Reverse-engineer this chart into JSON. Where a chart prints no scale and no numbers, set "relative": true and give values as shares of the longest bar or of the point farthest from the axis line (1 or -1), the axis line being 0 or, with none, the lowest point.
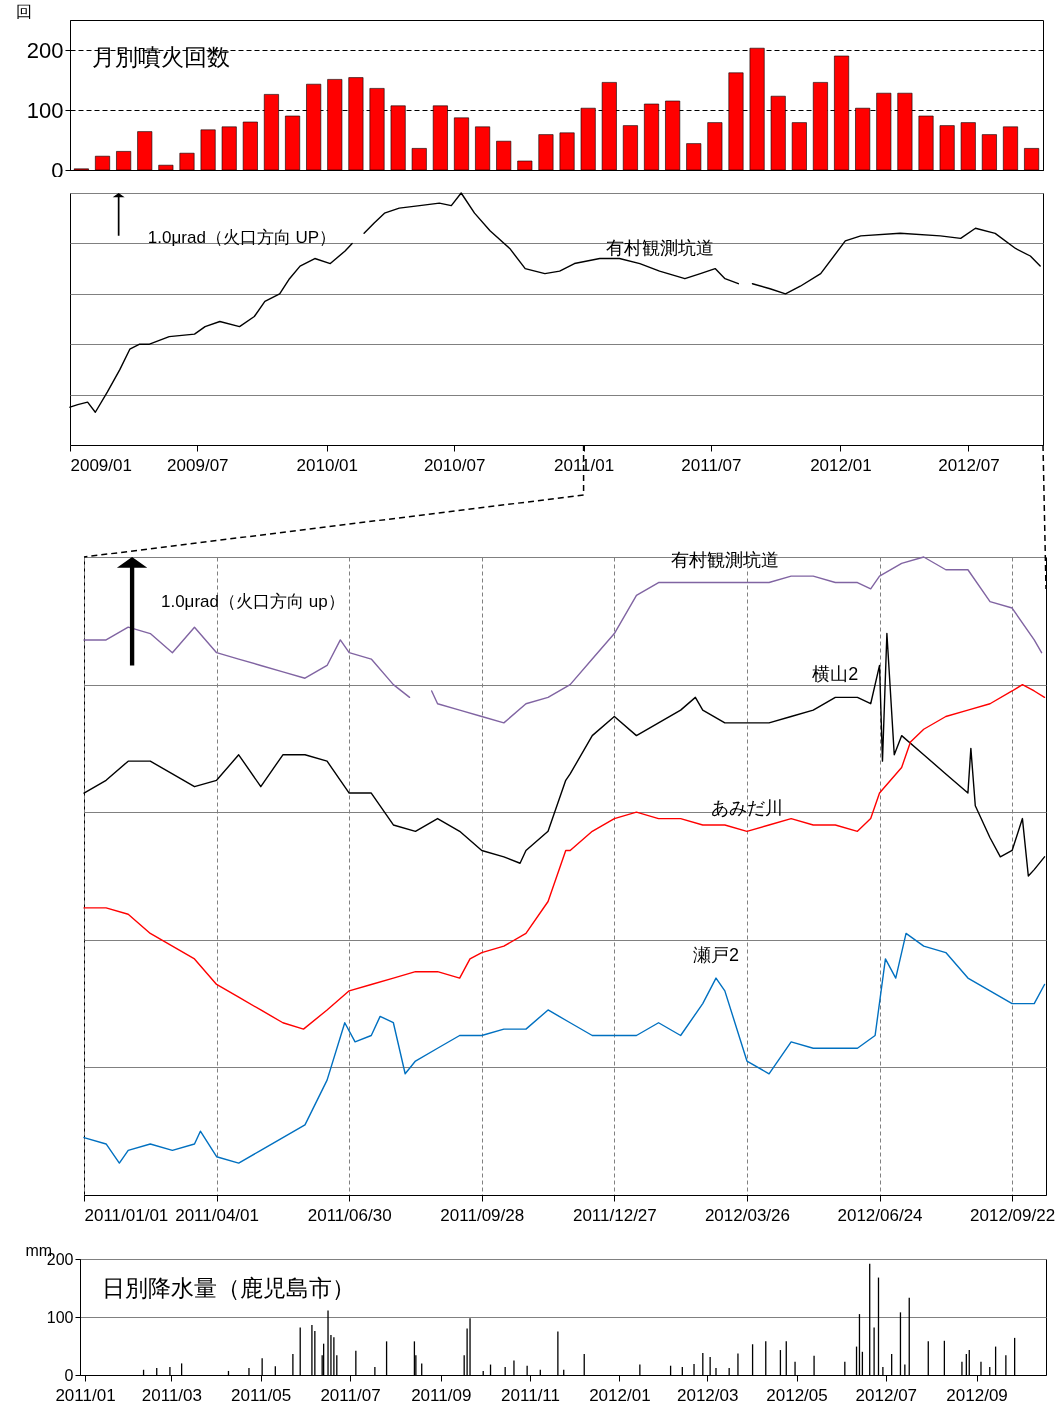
{
  "chart_data": [
    {
      "type": "bar",
      "title": "月別噴火回数",
      "ylabel": "回",
      "categories": [
        null,
        null,
        null,
        null,
        null,
        null,
        null,
        null,
        null,
        null,
        null,
        null,
        null,
        null,
        null,
        null,
        null,
        null,
        null,
        null,
        null,
        null,
        null,
        null,
        null,
        null,
        null,
        null,
        null,
        null,
        null,
        null,
        null,
        null,
        null,
        null,
        null,
        null,
        null,
        null,
        null,
        null,
        null,
        null,
        null,
        null
      ],
      "values": [
        2,
        23,
        31,
        64,
        8,
        28,
        67,
        72,
        80,
        126,
        90,
        143,
        151,
        154,
        136,
        107,
        36,
        107,
        87,
        72,
        48,
        15,
        59,
        62,
        103,
        146,
        74,
        110,
        115,
        44,
        79,
        162,
        203,
        123,
        79,
        146,
        190,
        103,
        128,
        128,
        90,
        74,
        79,
        59,
        72,
        36
      ],
      "color": "#ff0000",
      "ylim": [
        0,
        250
      ],
      "yticks": [
        0,
        100,
        200
      ],
      "grid": "y",
      "tick_labels": "y"
    },
    {
      "type": "line",
      "relative": true,
      "annotations": [
        "1.0μrad（火口方向 UP）"
      ],
      "xlim": [
        "2009-01-01",
        "2012-10-15"
      ],
      "xticks": [
        {
          "value": "2009-01-01",
          "label": "2009/01"
        },
        {
          "value": "2009-07-01",
          "label": "2009/07"
        },
        {
          "value": "2010-01-01",
          "label": "2010/01"
        },
        {
          "value": "2010-07-01",
          "label": "2010/07"
        },
        {
          "value": "2011-01-01",
          "label": "2011/01"
        },
        {
          "value": "2011-07-01",
          "label": "2011/07"
        },
        {
          "value": "2012-01-01",
          "label": "2012/01"
        },
        {
          "value": "2012-07-01",
          "label": "2012/07"
        }
      ],
      "grid": "y",
      "series": [
        {
          "name": "有村観測坑道",
          "color": "#000000",
          "x": [
            "2009-01-01",
            "2009-01-12",
            "2009-01-26",
            "2009-02-06",
            "2009-02-23",
            "2009-03-13",
            "2009-03-27",
            "2009-04-10",
            "2009-04-24",
            "2009-05-22",
            "2009-06-27",
            "2009-07-12",
            "2009-08-02",
            "2009-08-30",
            "2009-09-20",
            "2009-10-05",
            "2009-10-26",
            "2009-11-09",
            "2009-11-24",
            "2009-12-15",
            "2010-01-06",
            "2010-01-27",
            "2010-02-06",
            "2010-02-14",
            "2010-02-23",
            "2010-03-09",
            "2010-03-24",
            "2010-04-14",
            "2010-05-13",
            "2010-06-10",
            "2010-06-27",
            "2010-07-11",
            "2010-07-30",
            "2010-08-21",
            "2010-09-18",
            "2010-10-10",
            "2010-11-07",
            "2010-11-28",
            "2010-12-19",
            "2011-01-24",
            "2011-02-21",
            "2011-03-22",
            "2011-04-19",
            "2011-05-25",
            "2011-06-16",
            "2011-07-07",
            "2011-07-21",
            "2011-08-09",
            "2011-08-19",
            "2011-08-29",
            "2011-09-23",
            "2011-10-15",
            "2011-11-05",
            "2011-12-04",
            "2012-01-08",
            "2012-01-30",
            "2012-03-26",
            "2012-05-22",
            "2012-06-20",
            "2012-07-11",
            "2012-08-08",
            "2012-09-06",
            "2012-09-27",
            "2012-10-11"
          ],
          "values": [
            0.15,
            0.16,
            0.17,
            0.13,
            0.21,
            0.3,
            0.38,
            0.4,
            0.4,
            0.43,
            0.44,
            0.47,
            0.49,
            0.47,
            0.51,
            0.57,
            0.6,
            0.66,
            0.71,
            0.74,
            0.72,
            0.77,
            0.8,
            null,
            0.84,
            0.88,
            0.92,
            0.94,
            0.95,
            0.96,
            0.95,
            1,
            0.92,
            0.85,
            0.78,
            0.7,
            0.68,
            0.69,
            0.72,
            0.74,
            0.74,
            0.72,
            0.69,
            0.66,
            0.68,
            0.7,
            0.66,
            0.64,
            null,
            0.64,
            0.62,
            0.6,
            0.63,
            0.68,
            0.81,
            0.83,
            0.84,
            0.83,
            0.82,
            0.86,
            0.84,
            0.78,
            0.75,
            0.71
          ]
        }
      ]
    },
    {
      "type": "line",
      "relative": true,
      "annotations": [
        "1.0μrad（火口方向 up）"
      ],
      "xlim": [
        "2011-01-01",
        "2012-10-15"
      ],
      "xticks": [
        {
          "value": "2011-01-01",
          "label": "2011/01/01"
        },
        {
          "value": "2011-04-01",
          "label": "2011/04/01"
        },
        {
          "value": "2011-06-30",
          "label": "2011/06/30"
        },
        {
          "value": "2011-09-28",
          "label": "2011/09/28"
        },
        {
          "value": "2011-12-27",
          "label": "2011/12/27"
        },
        {
          "value": "2012-03-26",
          "label": "2012/03/26"
        },
        {
          "value": "2012-06-24",
          "label": "2012/06/24"
        },
        {
          "value": "2012-09-22",
          "label": "2012/09/22"
        }
      ],
      "grid": true,
      "series": [
        {
          "name": "有村観測坑道",
          "color": "#8064a2",
          "x": [
            "2011-01-01",
            "2011-01-16",
            "2011-01-31",
            "2011-02-15",
            "2011-03-02",
            "2011-03-17",
            "2011-04-01",
            "2011-04-16",
            "2011-05-01",
            "2011-05-16",
            "2011-05-31",
            "2011-06-15",
            "2011-06-24",
            "2011-06-30",
            "2011-07-15",
            "2011-07-30",
            "2011-08-10",
            "2011-08-17",
            "2011-08-25",
            "2011-08-29",
            "2011-09-13",
            "2011-09-28",
            "2011-10-13",
            "2011-10-28",
            "2011-11-12",
            "2011-11-27",
            "2011-12-12",
            "2011-12-27",
            "2012-01-11",
            "2012-01-26",
            "2012-02-10",
            "2012-02-25",
            "2012-03-11",
            "2012-03-26",
            "2012-04-10",
            "2012-04-25",
            "2012-05-10",
            "2012-05-25",
            "2012-06-09",
            "2012-06-18",
            "2012-06-24",
            "2012-07-09",
            "2012-07-24",
            "2012-08-08",
            "2012-08-23",
            "2012-09-07",
            "2012-09-22",
            "2012-10-07",
            "2012-10-12"
          ],
          "values": [
            0.87,
            0.87,
            0.89,
            0.88,
            0.85,
            0.89,
            0.85,
            0.84,
            0.83,
            0.82,
            0.81,
            0.83,
            0.87,
            0.85,
            0.84,
            0.8,
            0.78,
            null,
            0.79,
            0.77,
            0.76,
            0.75,
            0.74,
            0.77,
            0.78,
            0.8,
            0.84,
            0.88,
            0.94,
            0.96,
            0.96,
            0.96,
            0.96,
            0.96,
            0.96,
            0.97,
            0.97,
            0.96,
            0.96,
            0.95,
            0.97,
            0.99,
            1,
            0.98,
            0.98,
            0.93,
            0.92,
            0.87,
            0.85
          ]
        },
        {
          "name": "横山2",
          "color": "#000000",
          "x": [
            "2011-01-01",
            "2011-01-16",
            "2011-01-31",
            "2011-02-15",
            "2011-03-02",
            "2011-03-17",
            "2011-04-01",
            "2011-04-16",
            "2011-05-01",
            "2011-05-16",
            "2011-05-31",
            "2011-06-15",
            "2011-06-30",
            "2011-07-15",
            "2011-07-30",
            "2011-08-14",
            "2011-08-29",
            "2011-09-13",
            "2011-09-28",
            "2011-10-13",
            "2011-10-24",
            "2011-10-28",
            "2011-11-12",
            "2011-11-24",
            "2011-11-27",
            "2011-12-12",
            "2011-12-27",
            "2012-01-11",
            "2012-01-26",
            "2012-02-10",
            "2012-02-20",
            "2012-02-25",
            "2012-03-11",
            "2012-03-26",
            "2012-04-10",
            "2012-04-25",
            "2012-05-10",
            "2012-05-25",
            "2012-06-09",
            "2012-06-18",
            "2012-06-24",
            "2012-06-26",
            "2012-06-29",
            "2012-07-04",
            "2012-07-09",
            "2012-07-24",
            "2012-08-08",
            "2012-08-23",
            "2012-08-25",
            "2012-08-28",
            "2012-09-07",
            "2012-09-14",
            "2012-09-22",
            "2012-09-29",
            "2012-10-03",
            "2012-10-07",
            "2012-10-14"
          ],
          "values": [
            0.63,
            0.65,
            0.68,
            0.68,
            0.66,
            0.64,
            0.65,
            0.69,
            0.64,
            0.69,
            0.69,
            0.68,
            0.63,
            0.63,
            0.58,
            0.57,
            0.59,
            0.57,
            0.54,
            0.53,
            0.52,
            0.54,
            0.57,
            0.65,
            0.66,
            0.72,
            0.75,
            0.72,
            0.74,
            0.76,
            0.78,
            0.76,
            0.74,
            0.74,
            0.74,
            0.75,
            0.76,
            0.78,
            0.78,
            0.77,
            0.83,
            0.68,
            0.88,
            0.69,
            0.72,
            0.69,
            0.66,
            0.63,
            0.7,
            0.61,
            0.56,
            0.53,
            0.54,
            0.59,
            0.5,
            0.51,
            0.53
          ]
        },
        {
          "name": "あみだ川",
          "color": "#ff0000",
          "x": [
            "2011-01-01",
            "2011-01-16",
            "2011-01-31",
            "2011-02-15",
            "2011-03-02",
            "2011-03-17",
            "2011-04-01",
            "2011-04-16",
            "2011-05-01",
            "2011-05-16",
            "2011-05-30",
            "2011-06-15",
            "2011-06-30",
            "2011-07-15",
            "2011-07-30",
            "2011-08-14",
            "2011-08-29",
            "2011-09-13",
            "2011-09-20",
            "2011-09-28",
            "2011-10-13",
            "2011-10-28",
            "2011-11-12",
            "2011-11-24",
            "2011-11-27",
            "2011-12-12",
            "2011-12-27",
            "2012-01-11",
            "2012-01-26",
            "2012-02-10",
            "2012-02-25",
            "2012-03-11",
            "2012-03-26",
            "2012-04-10",
            "2012-04-25",
            "2012-05-10",
            "2012-05-25",
            "2012-06-09",
            "2012-06-18",
            "2012-06-24",
            "2012-07-09",
            "2012-07-15",
            "2012-07-24",
            "2012-08-08",
            "2012-08-23",
            "2012-09-07",
            "2012-09-22",
            "2012-09-29",
            "2012-10-07",
            "2012-10-14"
          ],
          "values": [
            0.45,
            0.45,
            0.44,
            0.41,
            0.39,
            0.37,
            0.33,
            0.31,
            0.29,
            0.27,
            0.26,
            0.29,
            0.32,
            0.33,
            0.34,
            0.35,
            0.35,
            0.34,
            0.37,
            0.38,
            0.39,
            0.41,
            0.46,
            0.54,
            0.54,
            0.57,
            0.59,
            0.6,
            0.59,
            0.59,
            0.58,
            0.58,
            0.57,
            0.58,
            0.59,
            0.58,
            0.58,
            0.57,
            0.59,
            0.63,
            0.67,
            0.71,
            0.73,
            0.75,
            0.76,
            0.77,
            0.79,
            0.8,
            0.79,
            0.78
          ]
        },
        {
          "name": "瀬戸2",
          "color": "#0070c0",
          "x": [
            "2011-01-01",
            "2011-01-16",
            "2011-01-25",
            "2011-01-31",
            "2011-02-15",
            "2011-03-02",
            "2011-03-17",
            "2011-03-21",
            "2011-04-01",
            "2011-04-16",
            "2011-05-01",
            "2011-05-16",
            "2011-05-31",
            "2011-06-15",
            "2011-06-27",
            "2011-07-04",
            "2011-07-15",
            "2011-07-21",
            "2011-07-30",
            "2011-08-07",
            "2011-08-14",
            "2011-08-29",
            "2011-09-13",
            "2011-09-28",
            "2011-10-13",
            "2011-10-28",
            "2011-11-12",
            "2011-11-27",
            "2011-12-12",
            "2011-12-27",
            "2012-01-11",
            "2012-01-26",
            "2012-02-10",
            "2012-02-25",
            "2012-03-05",
            "2012-03-11",
            "2012-03-26",
            "2012-04-10",
            "2012-04-25",
            "2012-05-10",
            "2012-05-25",
            "2012-06-09",
            "2012-06-21",
            "2012-06-28",
            "2012-07-05",
            "2012-07-12",
            "2012-07-24",
            "2012-08-08",
            "2012-08-23",
            "2012-09-07",
            "2012-09-22",
            "2012-10-07",
            "2012-10-14"
          ],
          "values": [
            0.09,
            0.08,
            0.05,
            0.07,
            0.08,
            0.07,
            0.08,
            0.1,
            0.06,
            0.05,
            0.07,
            0.09,
            0.11,
            0.18,
            0.27,
            0.24,
            0.25,
            0.28,
            0.27,
            0.19,
            0.21,
            0.23,
            0.25,
            0.25,
            0.26,
            0.26,
            0.29,
            0.27,
            0.25,
            0.25,
            0.25,
            0.27,
            0.25,
            0.3,
            0.34,
            0.32,
            0.21,
            0.19,
            0.24,
            0.23,
            0.23,
            0.23,
            0.25,
            0.37,
            0.34,
            0.41,
            0.39,
            0.38,
            0.34,
            0.32,
            0.3,
            0.3,
            0.33
          ]
        }
      ]
    },
    {
      "type": "bar",
      "title": "日別降水量（鹿児島市）",
      "ylabel": "mm",
      "x": [
        "2011-02-10",
        "2011-02-19",
        "2011-02-28",
        "2011-03-08",
        "2011-04-09",
        "2011-04-23",
        "2011-05-02",
        "2011-05-11",
        "2011-05-23",
        "2011-05-28",
        "2011-06-05",
        "2011-06-07",
        "2011-06-12",
        "2011-06-13",
        "2011-06-16",
        "2011-06-18",
        "2011-06-20",
        "2011-06-22",
        "2011-07-05",
        "2011-07-18",
        "2011-07-26",
        "2011-08-14",
        "2011-08-15",
        "2011-08-19",
        "2011-09-17",
        "2011-09-19",
        "2011-09-21",
        "2011-09-30",
        "2011-10-05",
        "2011-10-15",
        "2011-10-21",
        "2011-10-30",
        "2011-11-08",
        "2011-11-20",
        "2011-11-24",
        "2011-12-08",
        "2012-01-15",
        "2012-02-05",
        "2012-02-13",
        "2012-02-21",
        "2012-02-27",
        "2012-03-03",
        "2012-03-07",
        "2012-03-16",
        "2012-03-22",
        "2012-04-01",
        "2012-04-10",
        "2012-04-20",
        "2012-04-24",
        "2012-04-30",
        "2012-05-13",
        "2012-06-03",
        "2012-06-11",
        "2012-06-13",
        "2012-06-15",
        "2012-06-20",
        "2012-06-23",
        "2012-06-26",
        "2012-06-29",
        "2012-07-05",
        "2012-07-11",
        "2012-07-14",
        "2012-07-17",
        "2012-07-30",
        "2012-08-10",
        "2012-08-22",
        "2012-08-25",
        "2012-08-27",
        "2012-09-04",
        "2012-09-10",
        "2012-09-14",
        "2012-09-21",
        "2012-09-27"
      ],
      "values": [
        9,
        12,
        14,
        20,
        7,
        12,
        29,
        15,
        36,
        82,
        86,
        76,
        34,
        54,
        111,
        69,
        65,
        34,
        42,
        14,
        58,
        58,
        34,
        20,
        34,
        80,
        98,
        7,
        18,
        14,
        25,
        16,
        9,
        75,
        9,
        36,
        18,
        16,
        14,
        19,
        38,
        31,
        12,
        12,
        37,
        53,
        58,
        43,
        58,
        23,
        33,
        23,
        49,
        105,
        40,
        192,
        82,
        168,
        14,
        36,
        108,
        18,
        133,
        58,
        59,
        23,
        36,
        43,
        23,
        14,
        49,
        34,
        64
      ],
      "color": "#000000",
      "xlim": [
        "2011-01-01",
        "2012-10-15"
      ],
      "xticks": [
        {
          "value": "2011-01-01",
          "label": "2011/01"
        },
        {
          "value": "2011-03-01",
          "label": "2011/03"
        },
        {
          "value": "2011-05-01",
          "label": "2011/05"
        },
        {
          "value": "2011-07-01",
          "label": "2011/07"
        },
        {
          "value": "2011-09-01",
          "label": "2011/09"
        },
        {
          "value": "2011-11-01",
          "label": "2011/11"
        },
        {
          "value": "2012-01-01",
          "label": "2012/01"
        },
        {
          "value": "2012-03-01",
          "label": "2012/03"
        },
        {
          "value": "2012-05-01",
          "label": "2012/05"
        },
        {
          "value": "2012-07-01",
          "label": "2012/07"
        },
        {
          "value": "2012-09-01",
          "label": "2012/09"
        }
      ],
      "ylim": [
        0,
        200
      ],
      "yticks": [
        0,
        100,
        200
      ],
      "grid": "y"
    }
  ]
}
